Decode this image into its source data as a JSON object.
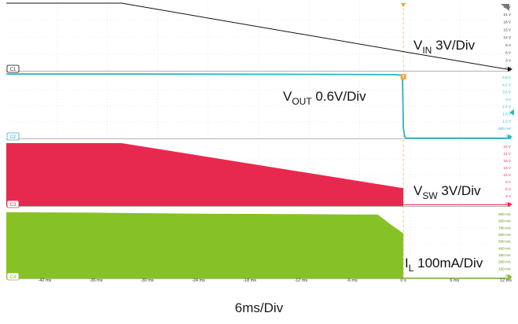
{
  "chart_data": {
    "type": "line",
    "x_unit": "ms",
    "time_ticks": [
      "-42 ms",
      "-36 ms",
      "-30 ms",
      "-24 ms",
      "-18 ms",
      "-12 ms",
      "-6 ms",
      "0 s",
      "6 ms",
      "12 ms"
    ],
    "time_tick_values": [
      -42,
      -36,
      -30,
      -24,
      -18,
      -12,
      -6,
      0,
      6,
      12
    ],
    "xlim": [
      -46.5,
      12.6
    ],
    "time_scale_label": "6ms/Div",
    "trigger_marker": "T",
    "channels": [
      {
        "id": "C1",
        "label": {
          "main": "V",
          "sub": "IN",
          "rest": " 3V/Div"
        },
        "color": "#111111",
        "style": "line",
        "unit": "V",
        "tick_labels": [
          "24 V",
          "21 V",
          "18 V",
          "15 V",
          "12 V",
          "9 V",
          "6 V",
          "3 V",
          "0 V"
        ],
        "ylim": [
          0,
          24
        ],
        "x": [
          -46.5,
          -33,
          0,
          12.6
        ],
        "y": [
          24,
          24,
          6.8,
          0.3
        ]
      },
      {
        "id": "C2",
        "label": {
          "main": "V",
          "sub": "OUT",
          "rest": " 0.6V/Div"
        },
        "color": "#2ab4c8",
        "style": "line",
        "unit": "V",
        "tick_labels": [
          "4.8 V",
          "4.2 V",
          "3.6 V",
          "3 V",
          "2.4 V",
          "1.8 V",
          "1.2 V",
          "600 mV",
          "0 V"
        ],
        "ylim": [
          0,
          4.8
        ],
        "x": [
          -46.5,
          -30,
          -10,
          -1,
          -0.1,
          0,
          0.15,
          0.3,
          1,
          12.6
        ],
        "y": [
          4.79,
          4.79,
          4.77,
          4.75,
          4.7,
          0.8,
          0.15,
          0.02,
          0.02,
          0.02
        ]
      },
      {
        "id": "C3",
        "label": {
          "main": "V",
          "sub": "SW",
          "rest": " 3V/Div"
        },
        "color": "#e8294f",
        "style": "envelope",
        "unit": "V",
        "tick_labels": [
          "24 V",
          "21 V",
          "18 V",
          "15 V",
          "12 V",
          "9 V",
          "6 V",
          "3 V",
          "0 V"
        ],
        "ylim": [
          0,
          24
        ],
        "x": [
          -46.5,
          -33,
          0
        ],
        "y_top": [
          24,
          24,
          6.8
        ],
        "after_x": [
          0,
          12.6
        ],
        "after_y": [
          0.5,
          0.5
        ]
      },
      {
        "id": "C4",
        "label": {
          "main": "I",
          "sub": "L",
          "rest": " 100mA/Div"
        },
        "color": "#86c226",
        "style": "envelope",
        "unit": "A",
        "tick_labels": [
          "900 mA",
          "800 mA",
          "700 mA",
          "600 mA",
          "500 mA",
          "400 mA",
          "300 mA",
          "200 mA",
          "100 mA",
          "0 A"
        ],
        "ylim": [
          0,
          0.9
        ],
        "x": [
          -46.5,
          -36,
          -24,
          -12,
          -6,
          -3,
          -1.5,
          0
        ],
        "y_top": [
          0.88,
          0.875,
          0.86,
          0.855,
          0.85,
          0.85,
          0.72,
          0.6
        ],
        "after_x": [
          0,
          12.6
        ],
        "after_y": [
          0.005,
          0.005
        ]
      }
    ]
  }
}
